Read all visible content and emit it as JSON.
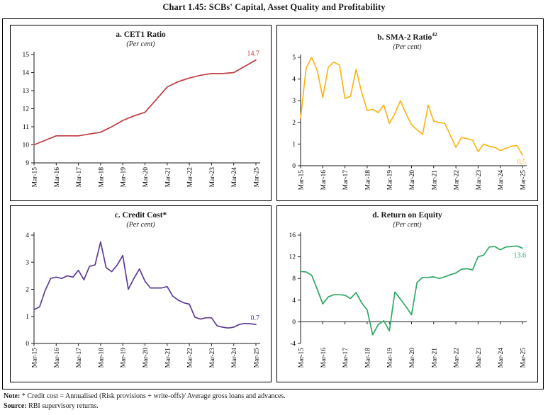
{
  "figure": {
    "title": "Chart 1.45: SCBs' Capital, Asset Quality and Profitability",
    "note_label": "Note:",
    "note": " * Credit cost = Annualised (Risk provisions + write-offs)/ Average gross loans and advances.",
    "source_label": "Source:",
    "source": " RBI supervisory returns."
  },
  "chart_data": [
    {
      "id": "cet1-ratio",
      "type": "line",
      "title": "a. CET1 Ratio",
      "subtitle": "(Per cent)",
      "color": "#c0393d",
      "ylim": [
        9,
        15
      ],
      "yticks": [
        9,
        10,
        11,
        12,
        13,
        14,
        15
      ],
      "x_axis_at": 9,
      "x_ticks": [
        "Mar-15",
        "Mar-16",
        "Mar-17",
        "Mar-18",
        "Mar-19",
        "Mar-20",
        "Mar-21",
        "Mar-22",
        "Mar-23",
        "Mar-24",
        "Mar-25"
      ],
      "x_frequency": "semi-annual",
      "points_per_tick": 2,
      "end_label": "14.7",
      "end_label_pos": "above",
      "values": [
        10.0,
        10.25,
        10.5,
        10.5,
        10.5,
        10.6,
        10.7,
        11.0,
        11.35,
        11.6,
        11.8,
        12.5,
        13.2,
        13.5,
        13.7,
        13.85,
        13.95,
        13.95,
        14.0,
        14.35,
        14.7
      ]
    },
    {
      "id": "sma2-ratio",
      "type": "line",
      "title": "b. SMA-2 Ratio",
      "title_sup": "42",
      "subtitle": "(Per cent)",
      "color": "#fbb616",
      "ylim": [
        0,
        5
      ],
      "yticks": [
        0,
        1,
        2,
        3,
        4,
        5
      ],
      "x_axis_at": 0,
      "x_ticks": [
        "Mar-15",
        "Mar-16",
        "Mar-17",
        "Mar-18",
        "Mar-19",
        "Mar-20",
        "Mar-21",
        "Mar-22",
        "Mar-23",
        "Mar-24",
        "Mar-25"
      ],
      "x_frequency": "quarterly",
      "points_per_tick": 4,
      "end_label": "0.5",
      "end_label_pos": "below",
      "values": [
        2.2,
        4.5,
        5.0,
        4.4,
        3.15,
        4.55,
        4.78,
        4.65,
        3.1,
        3.2,
        4.45,
        3.4,
        2.55,
        2.6,
        2.45,
        2.8,
        1.95,
        2.4,
        3.0,
        2.4,
        1.9,
        1.65,
        1.45,
        2.8,
        2.05,
        2.0,
        1.95,
        1.4,
        0.85,
        1.3,
        1.25,
        1.18,
        0.65,
        1.0,
        0.9,
        0.85,
        0.7,
        0.8,
        0.9,
        0.93,
        0.5
      ]
    },
    {
      "id": "credit-cost",
      "type": "line",
      "title": "c. Credit Cost*",
      "subtitle": "(Per cent)",
      "color": "#5d3b97",
      "ylim": [
        0,
        4
      ],
      "yticks": [
        0,
        1,
        2,
        3,
        4
      ],
      "x_axis_at": 0,
      "x_ticks": [
        "Mar-15",
        "Mar-16",
        "Mar-17",
        "Mar-18",
        "Mar-19",
        "Mar-20",
        "Mar-21",
        "Mar-22",
        "Mar-23",
        "Mar-24",
        "Mar-25"
      ],
      "x_frequency": "quarterly",
      "points_per_tick": 4,
      "end_label": "0.7",
      "end_label_pos": "above",
      "values": [
        1.25,
        1.35,
        1.95,
        2.4,
        2.45,
        2.4,
        2.5,
        2.45,
        2.7,
        2.35,
        2.85,
        2.9,
        3.75,
        2.8,
        2.65,
        2.9,
        3.25,
        2.0,
        2.4,
        2.75,
        2.3,
        2.05,
        2.05,
        2.05,
        2.1,
        1.75,
        1.6,
        1.5,
        1.45,
        0.97,
        0.9,
        0.95,
        0.95,
        0.65,
        0.6,
        0.57,
        0.6,
        0.7,
        0.74,
        0.73,
        0.7
      ]
    },
    {
      "id": "return-on-equity",
      "type": "line",
      "title": "d. Return on Equity",
      "subtitle": "(Per cent)",
      "color": "#2ea963",
      "ylim": [
        -4,
        16
      ],
      "yticks": [
        -4,
        0,
        4,
        8,
        12,
        16
      ],
      "x_axis_at": 0,
      "x_ticks": [
        "Mar-15",
        "Mar-16",
        "Mar-17",
        "Mar-18",
        "Mar-19",
        "Mar-20",
        "Mar-21",
        "Mar-22",
        "Mar-23",
        "Mar-24",
        "Mar-25"
      ],
      "x_frequency": "quarterly",
      "points_per_tick": 4,
      "end_label": "13.6",
      "end_label_pos": "below",
      "values": [
        9.3,
        9.2,
        8.6,
        6.0,
        3.3,
        4.6,
        5.0,
        5.0,
        4.9,
        4.3,
        5.4,
        3.5,
        2.2,
        -2.4,
        -0.5,
        0.2,
        -1.7,
        5.5,
        4.2,
        2.8,
        1.3,
        7.3,
        8.2,
        8.2,
        8.3,
        8.0,
        8.3,
        8.7,
        9.0,
        9.7,
        9.8,
        9.6,
        12.0,
        12.3,
        13.8,
        13.9,
        13.3,
        13.8,
        13.9,
        14.0,
        13.6
      ]
    }
  ]
}
